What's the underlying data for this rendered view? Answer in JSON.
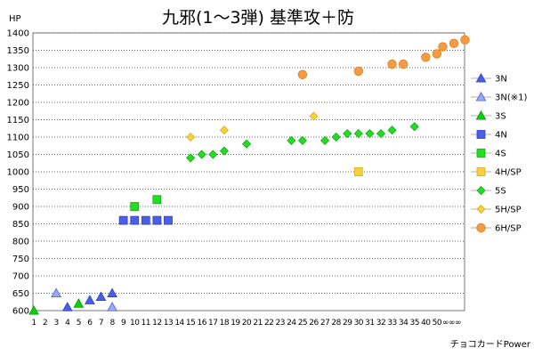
{
  "chart_data": {
    "type": "scatter",
    "title": "九邪(1～3弾) 基準攻＋防",
    "ylabel": "HP",
    "xlabel": "チョコカードPower",
    "ylim": [
      600,
      1400
    ],
    "y_ticks": [
      600,
      650,
      700,
      750,
      800,
      850,
      900,
      950,
      1000,
      1050,
      1100,
      1150,
      1200,
      1250,
      1300,
      1350,
      1400
    ],
    "x_tick_labels": [
      "1",
      "2",
      "3",
      "4",
      "5",
      "6",
      "7",
      "8",
      "9",
      "10",
      "11",
      "12",
      "13",
      "14",
      "15",
      "16",
      "17",
      "18",
      "19",
      "20",
      "21",
      "22",
      "23",
      "24",
      "25",
      "26",
      "27",
      "28",
      "29",
      "30",
      "31",
      "32",
      "33",
      "34",
      "35",
      "40",
      "50",
      "∞∞∞"
    ],
    "grid": "horizontal-dotted",
    "legend_position": "right",
    "series": [
      {
        "name": "3N",
        "marker": "triangle",
        "color": "#4a5ee6",
        "stroke": "#2f3fc0",
        "points": [
          [
            "4",
            610
          ],
          [
            "6",
            630
          ],
          [
            "7",
            640
          ],
          [
            "8",
            650
          ]
        ]
      },
      {
        "name": "3N(※1)",
        "marker": "triangle",
        "color": "#9aaaf0",
        "stroke": "#4a5ee6",
        "points": [
          [
            "3",
            650
          ],
          [
            "8",
            610
          ]
        ]
      },
      {
        "name": "3S",
        "marker": "triangle",
        "color": "#11cc11",
        "stroke": "#0a990a",
        "points": [
          [
            "1",
            600
          ],
          [
            "5",
            620
          ]
        ]
      },
      {
        "name": "4N",
        "marker": "square",
        "color": "#4a5ee6",
        "stroke": "#3040c8",
        "points": [
          [
            "9",
            860
          ],
          [
            "10",
            860
          ],
          [
            "11",
            860
          ],
          [
            "12",
            860
          ],
          [
            "13",
            860
          ]
        ]
      },
      {
        "name": "4S",
        "marker": "square",
        "color": "#22dd22",
        "stroke": "#11aa11",
        "points": [
          [
            "10",
            900
          ],
          [
            "12",
            920
          ]
        ]
      },
      {
        "name": "4H/SP",
        "marker": "square",
        "color": "#f4d03f",
        "stroke": "#d4b020",
        "points": [
          [
            "30",
            1000
          ]
        ]
      },
      {
        "name": "5S",
        "marker": "diamond",
        "color": "#22dd22",
        "stroke": "#11aa11",
        "points": [
          [
            "15",
            1040
          ],
          [
            "16",
            1050
          ],
          [
            "17",
            1050
          ],
          [
            "18",
            1060
          ],
          [
            "20",
            1080
          ],
          [
            "24",
            1090
          ],
          [
            "25",
            1090
          ],
          [
            "27",
            1090
          ],
          [
            "28",
            1100
          ],
          [
            "29",
            1110
          ],
          [
            "30",
            1110
          ],
          [
            "31",
            1110
          ],
          [
            "32",
            1110
          ],
          [
            "33",
            1120
          ],
          [
            "35",
            1130
          ]
        ]
      },
      {
        "name": "5H/SP",
        "marker": "diamond",
        "color": "#f4d03f",
        "stroke": "#d4b020",
        "points": [
          [
            "15",
            1100
          ],
          [
            "18",
            1120
          ],
          [
            "26",
            1160
          ]
        ]
      },
      {
        "name": "6H/SP",
        "marker": "circle",
        "color": "#f39c44",
        "stroke": "#e08020",
        "points": [
          [
            "25",
            1280
          ],
          [
            "30",
            1290
          ],
          [
            "33",
            1310
          ],
          [
            "34",
            1310
          ],
          [
            "40",
            1330
          ],
          [
            "50",
            1340
          ],
          [
            "∞∞∞",
            1360
          ],
          [
            "∞∞∞",
            1370
          ],
          [
            "∞∞∞",
            1380
          ]
        ]
      }
    ]
  }
}
